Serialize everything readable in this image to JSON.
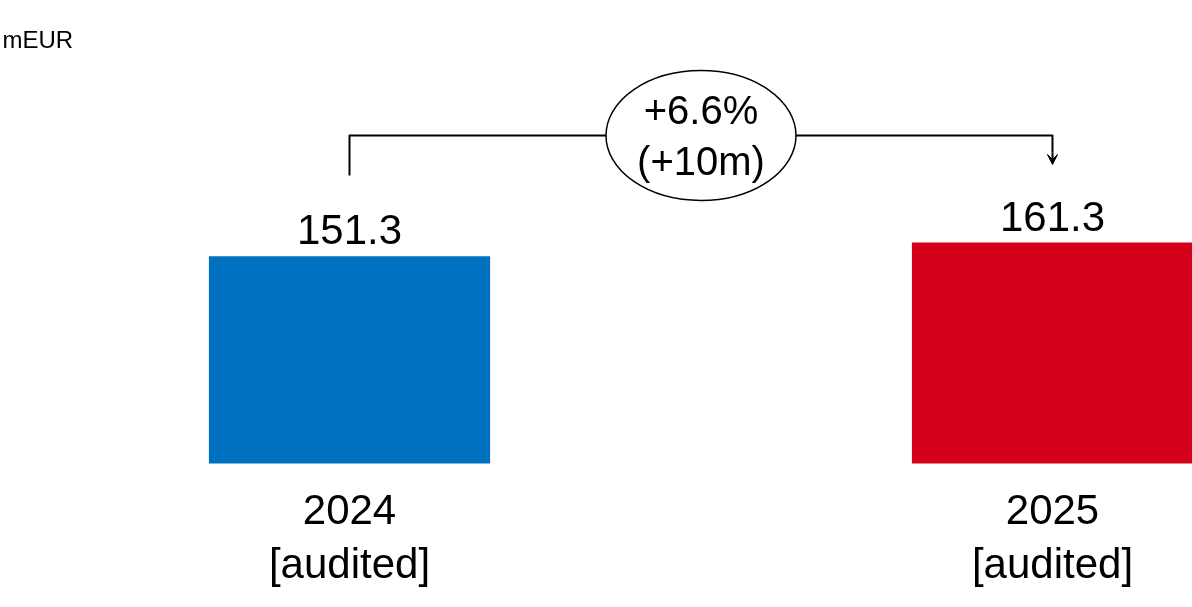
{
  "chart_data": {
    "type": "bar",
    "categories": [
      "2024\n[audited]",
      "2025\n[audited]"
    ],
    "values": [
      151.3,
      161.3
    ],
    "colors": [
      "#0070c0",
      "#d50019"
    ],
    "data_labels": true,
    "annotations": [
      "mEUR",
      "+6.6%\n(+10m)"
    ]
  }
}
